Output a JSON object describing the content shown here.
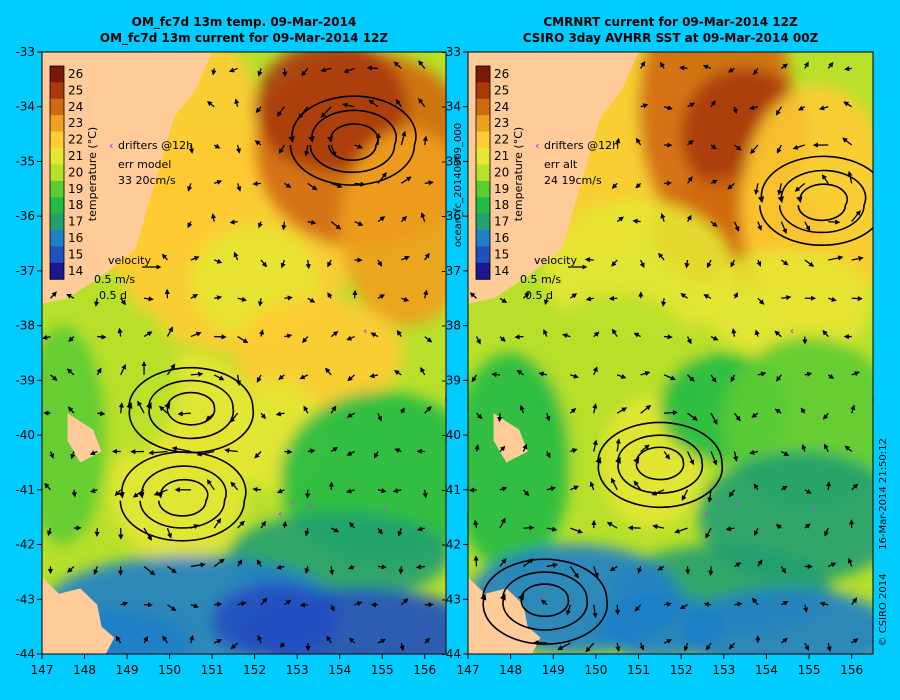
{
  "colors": {
    "background": "#00ccff",
    "land": "#ffcc99",
    "arrow": "#000000",
    "drifter": "#cc33ff"
  },
  "colorbar": {
    "ticks": [
      26,
      25,
      24,
      23,
      22,
      21,
      20,
      19,
      18,
      17,
      16,
      15,
      14
    ],
    "label": "temperature (°C)",
    "colors": [
      "#7a1a05",
      "#a83a0a",
      "#d06a10",
      "#f0a020",
      "#ffcc33",
      "#e6e633",
      "#b8e02a",
      "#5ccc33",
      "#22bb44",
      "#22a070",
      "#1f7fc8",
      "#2050c0",
      "#1a1890"
    ]
  },
  "velocity_legend": {
    "title": "velocity",
    "speed": "0.5 m/s",
    "duration": "0.5 d"
  },
  "drifters_label": "drifters @12h",
  "chart_data": [
    {
      "type": "heatmap",
      "title": "OM_fc7d 13m temp. 09-Mar-2014",
      "subtitle": "OM_fc7d 13m current for 09-Mar-2014 12Z",
      "x_ticks": [
        147,
        148,
        149,
        150,
        151,
        152,
        153,
        154,
        155,
        156
      ],
      "y_ticks": [
        -33,
        -34,
        -35,
        -36,
        -37,
        -38,
        -39,
        -40,
        -41,
        -42,
        -43,
        -44
      ],
      "xlim": [
        147,
        156.5
      ],
      "ylim": [
        -44,
        -33
      ],
      "color_range": [
        14,
        26
      ],
      "error_title": "err model",
      "error_values": "33 20cm/s",
      "eddies": [
        {
          "lon": 154.3,
          "lat": -34.7,
          "direction": "anticlockwise"
        },
        {
          "lon": 150.5,
          "lat": -39.5,
          "direction": "clockwise"
        },
        {
          "lon": 150.3,
          "lat": -41.2,
          "direction": "anticlockwise"
        }
      ]
    },
    {
      "type": "heatmap",
      "title": "CMRNRT current for 09-Mar-2014 12Z",
      "subtitle": "CSIRO 3day AVHRR SST at 09-Mar-2014 00Z",
      "x_ticks": [
        147,
        148,
        149,
        150,
        151,
        152,
        153,
        154,
        155,
        156
      ],
      "y_ticks": [
        -33,
        -34,
        -35,
        -36,
        -37,
        -38,
        -39,
        -40,
        -41,
        -42,
        -43,
        -44
      ],
      "xlim": [
        147,
        156.5
      ],
      "ylim": [
        -44,
        -33
      ],
      "color_range": [
        14,
        26
      ],
      "error_title": "err alt",
      "error_values": "24 19cm/s",
      "eddies": [
        {
          "lon": 155.3,
          "lat": -35.8,
          "direction": "anticlockwise"
        },
        {
          "lon": 151.5,
          "lat": -40.5,
          "direction": "clockwise"
        },
        {
          "lon": 148.8,
          "lat": -43.0,
          "direction": "clockwise"
        }
      ]
    }
  ],
  "side_text": {
    "left_panel_label": "ocean_fc_20140309_000",
    "right_timestamp": "16-Mar-2014 21:50:12",
    "right_copyright": "© CSIRO 2014"
  }
}
